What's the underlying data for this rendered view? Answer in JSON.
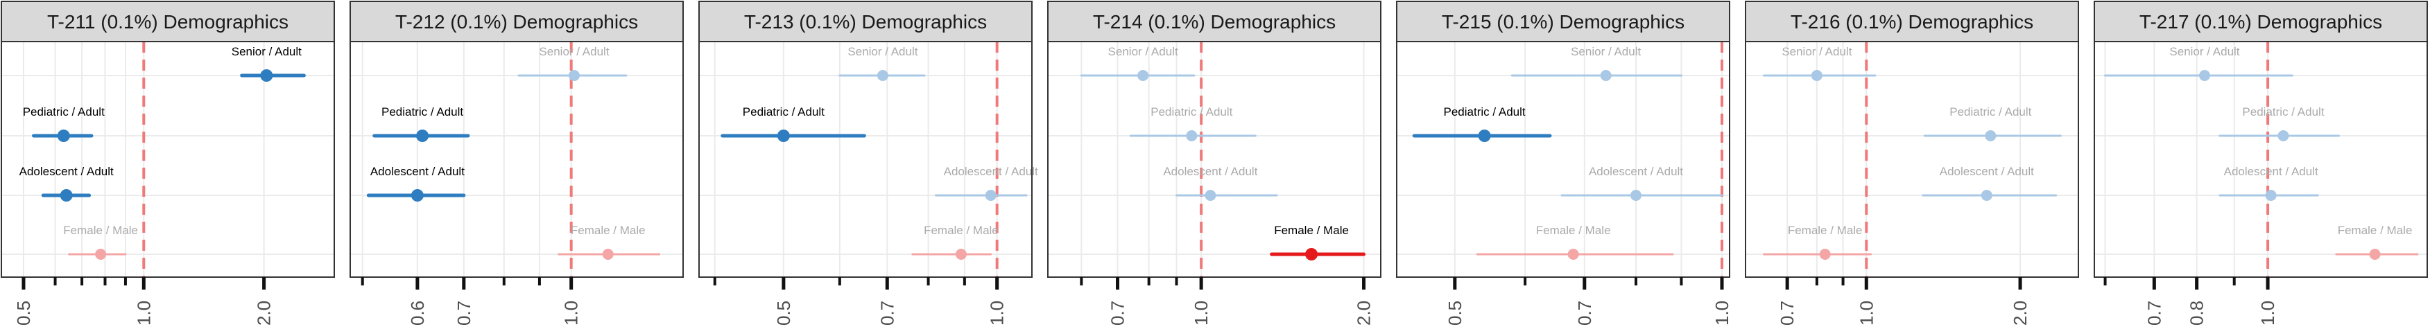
{
  "chart_data": [
    {
      "type": "forest",
      "title": "T-211 (0.1%) Demographics",
      "scale": "log",
      "xlim": [
        0.44,
        3.0
      ],
      "ticks": [
        0.5,
        1.0,
        2.0
      ],
      "tick_labels": [
        "0.5",
        "1.0",
        "2.0"
      ],
      "minor_ticks": [
        0.6,
        0.7,
        0.8,
        0.9
      ],
      "reference_line": 1.0,
      "rows": [
        {
          "label": "Senior / Adult",
          "estimate": 2.03,
          "lower": 1.76,
          "upper": 2.52,
          "group": "age",
          "significant": true
        },
        {
          "label": "Pediatric / Adult",
          "estimate": 0.63,
          "lower": 0.53,
          "upper": 0.74,
          "group": "age",
          "significant": true
        },
        {
          "label": "Adolescent / Adult",
          "estimate": 0.64,
          "lower": 0.56,
          "upper": 0.73,
          "group": "age",
          "significant": true
        },
        {
          "label": "Female / Male",
          "estimate": 0.78,
          "lower": 0.65,
          "upper": 0.9,
          "group": "sex",
          "significant": false
        }
      ]
    },
    {
      "type": "forest",
      "title": "T-212 (0.1%) Demographics",
      "scale": "log",
      "xlim": [
        0.48,
        1.45
      ],
      "ticks": [
        0.6,
        0.7,
        1.0
      ],
      "tick_labels": [
        "0.6",
        "0.7",
        "1.0"
      ],
      "minor_ticks": [
        0.5,
        0.8,
        0.9
      ],
      "reference_line": 1.0,
      "rows": [
        {
          "label": "Senior / Adult",
          "estimate": 1.01,
          "lower": 0.84,
          "upper": 1.2,
          "group": "age",
          "significant": false
        },
        {
          "label": "Pediatric / Adult",
          "estimate": 0.61,
          "lower": 0.52,
          "upper": 0.71,
          "group": "age",
          "significant": true
        },
        {
          "label": "Adolescent / Adult",
          "estimate": 0.6,
          "lower": 0.51,
          "upper": 0.7,
          "group": "age",
          "significant": true
        },
        {
          "label": "Female / Male",
          "estimate": 1.13,
          "lower": 0.96,
          "upper": 1.34,
          "group": "sex",
          "significant": false
        }
      ]
    },
    {
      "type": "forest",
      "title": "T-213 (0.1%) Demographics",
      "scale": "log",
      "xlim": [
        0.38,
        1.12
      ],
      "ticks": [
        0.5,
        0.7,
        1.0
      ],
      "tick_labels": [
        "0.5",
        "0.7",
        "1.0"
      ],
      "minor_ticks": [
        0.4,
        0.6,
        0.8,
        0.9
      ],
      "reference_line": 1.0,
      "rows": [
        {
          "label": "Senior / Adult",
          "estimate": 0.69,
          "lower": 0.6,
          "upper": 0.79,
          "group": "age",
          "significant": false
        },
        {
          "label": "Pediatric / Adult",
          "estimate": 0.5,
          "lower": 0.41,
          "upper": 0.65,
          "group": "age",
          "significant": true
        },
        {
          "label": "Adolescent / Adult",
          "estimate": 0.98,
          "lower": 0.82,
          "upper": 1.1,
          "group": "age",
          "significant": false
        },
        {
          "label": "Female / Male",
          "estimate": 0.89,
          "lower": 0.76,
          "upper": 0.98,
          "group": "sex",
          "significant": false
        }
      ]
    },
    {
      "type": "forest",
      "title": "T-214 (0.1%) Demographics",
      "scale": "log",
      "xlim": [
        0.52,
        2.15
      ],
      "ticks": [
        0.7,
        1.0,
        2.0
      ],
      "tick_labels": [
        "0.7",
        "1.0",
        "2.0"
      ],
      "minor_ticks": [
        0.6,
        0.8,
        0.9
      ],
      "reference_line": 1.0,
      "rows": [
        {
          "label": "Senior / Adult",
          "estimate": 0.78,
          "lower": 0.6,
          "upper": 0.97,
          "group": "age",
          "significant": false
        },
        {
          "label": "Pediatric / Adult",
          "estimate": 0.96,
          "lower": 0.74,
          "upper": 1.26,
          "group": "age",
          "significant": false
        },
        {
          "label": "Adolescent / Adult",
          "estimate": 1.04,
          "lower": 0.9,
          "upper": 1.38,
          "group": "age",
          "significant": false
        },
        {
          "label": "Female / Male",
          "estimate": 1.6,
          "lower": 1.35,
          "upper": 2.0,
          "group": "sex",
          "significant": true
        }
      ]
    },
    {
      "type": "forest",
      "title": "T-215 (0.1%) Demographics",
      "scale": "log",
      "xlim": [
        0.43,
        1.02
      ],
      "ticks": [
        0.5,
        0.7,
        1.0
      ],
      "tick_labels": [
        "0.5",
        "0.7",
        "1.0"
      ],
      "minor_ticks": [
        0.6,
        0.8,
        0.9
      ],
      "reference_line": 1.0,
      "rows": [
        {
          "label": "Senior / Adult",
          "estimate": 0.74,
          "lower": 0.58,
          "upper": 0.9,
          "group": "age",
          "significant": false
        },
        {
          "label": "Pediatric / Adult",
          "estimate": 0.54,
          "lower": 0.45,
          "upper": 0.64,
          "group": "age",
          "significant": true
        },
        {
          "label": "Adolescent / Adult",
          "estimate": 0.8,
          "lower": 0.66,
          "upper": 1.0,
          "group": "age",
          "significant": false
        },
        {
          "label": "Female / Male",
          "estimate": 0.68,
          "lower": 0.53,
          "upper": 0.88,
          "group": "sex",
          "significant": false
        }
      ]
    },
    {
      "type": "forest",
      "title": "T-216 (0.1%) Demographics",
      "scale": "log",
      "xlim": [
        0.58,
        2.6
      ],
      "ticks": [
        0.7,
        1.0,
        2.0
      ],
      "tick_labels": [
        "0.7",
        "1.0",
        "2.0"
      ],
      "minor_ticks": [
        0.8,
        0.9
      ],
      "reference_line": 1.0,
      "rows": [
        {
          "label": "Senior / Adult",
          "estimate": 0.8,
          "lower": 0.63,
          "upper": 1.04,
          "group": "age",
          "significant": false
        },
        {
          "label": "Pediatric / Adult",
          "estimate": 1.75,
          "lower": 1.3,
          "upper": 2.4,
          "group": "age",
          "significant": false
        },
        {
          "label": "Adolescent / Adult",
          "estimate": 1.72,
          "lower": 1.29,
          "upper": 2.35,
          "group": "age",
          "significant": false
        },
        {
          "label": "Female / Male",
          "estimate": 0.83,
          "lower": 0.63,
          "upper": 1.02,
          "group": "sex",
          "significant": false
        }
      ]
    },
    {
      "type": "forest",
      "title": "T-217 (0.1%) Demographics",
      "scale": "log",
      "xlim": [
        0.58,
        1.65
      ],
      "ticks": [
        0.7,
        0.8,
        1.0
      ],
      "tick_labels": [
        "0.7",
        "0.8",
        "1.0"
      ],
      "minor_ticks": [
        0.6,
        0.9
      ],
      "reference_line": 1.0,
      "rows": [
        {
          "label": "Senior / Adult",
          "estimate": 0.82,
          "lower": 0.6,
          "upper": 1.08,
          "group": "age",
          "significant": false
        },
        {
          "label": "Pediatric / Adult",
          "estimate": 1.05,
          "lower": 0.86,
          "upper": 1.25,
          "group": "age",
          "significant": false
        },
        {
          "label": "Adolescent / Adult",
          "estimate": 1.01,
          "lower": 0.86,
          "upper": 1.17,
          "group": "age",
          "significant": false
        },
        {
          "label": "Female / Male",
          "estimate": 1.4,
          "lower": 1.24,
          "upper": 1.6,
          "group": "sex",
          "significant": false
        }
      ]
    }
  ],
  "colors": {
    "age": "#2e7dc0",
    "age_faded": "#a9c8e6",
    "sex": "#e41a1c",
    "sex_faded": "#f4a6a6",
    "reference_line": "#f07a7a",
    "strip_fill": "#d9d9d9",
    "panel_border": "#333333",
    "grid": "#ebebeb",
    "label_dark": "#000000",
    "label_faded": "#aaaaaa"
  }
}
